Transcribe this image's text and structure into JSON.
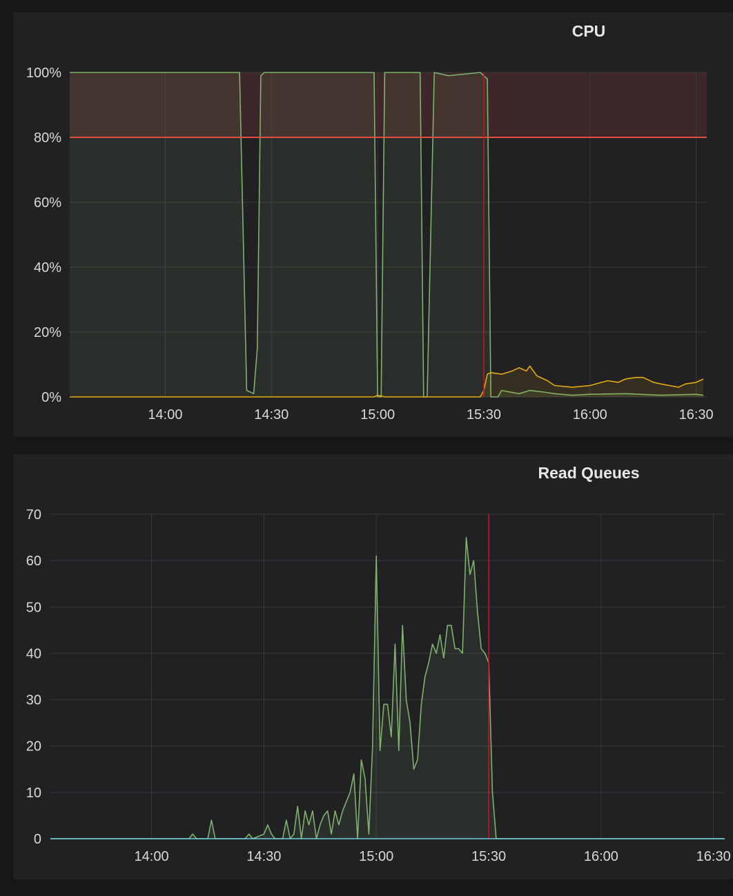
{
  "colors": {
    "background": "#161719",
    "panel": "#212124",
    "grid": "#3a3b3e",
    "green": "#7eb26d",
    "yellow": "#e5ac0e",
    "cyan": "#6ed0e0",
    "threshold_red": "#e24d42",
    "annotation_red": "#c4162a"
  },
  "chart_data": [
    {
      "type": "line",
      "title": "CPU",
      "x_ticks": [
        "14:00",
        "14:30",
        "15:00",
        "15:30",
        "16:00",
        "16:30"
      ],
      "y_ticks": [
        "0%",
        "20%",
        "40%",
        "60%",
        "80%",
        "100%"
      ],
      "xlim": [
        "13:33",
        "16:33"
      ],
      "ylim": [
        0,
        100
      ],
      "grid": true,
      "threshold": {
        "value": 80,
        "region": "above"
      },
      "annotation_time": "15:30",
      "series": [
        {
          "color": "green",
          "x": [
            "13:33",
            "14:00",
            "14:20",
            "14:21",
            "14:23",
            "14:25",
            "14:26",
            "14:27",
            "14:28",
            "14:30",
            "14:50",
            "14:59",
            "15:00",
            "15:01",
            "15:02",
            "15:10",
            "15:12",
            "15:13",
            "15:14",
            "15:16",
            "15:20",
            "15:29",
            "15:31",
            "15:32",
            "15:34",
            "15:35",
            "15:40",
            "15:43",
            "15:47",
            "15:50",
            "15:55",
            "16:00",
            "16:10",
            "16:20",
            "16:30",
            "16:32"
          ],
          "y": [
            100,
            100,
            100,
            100,
            2,
            1,
            15,
            99,
            100,
            100,
            100,
            100,
            0,
            0,
            100,
            100,
            100,
            0,
            0,
            100,
            99,
            100,
            98,
            0,
            0,
            2,
            1,
            2,
            1.5,
            1,
            0.5,
            0.8,
            1,
            0.5,
            0.8,
            0.5
          ]
        },
        {
          "color": "yellow",
          "x": [
            "13:33",
            "14:00",
            "14:30",
            "14:59",
            "15:00",
            "15:02",
            "15:10",
            "15:29",
            "15:30",
            "15:31",
            "15:32",
            "15:35",
            "15:38",
            "15:40",
            "15:42",
            "15:43",
            "15:45",
            "15:48",
            "15:50",
            "15:55",
            "16:00",
            "16:05",
            "16:08",
            "16:10",
            "16:13",
            "16:15",
            "16:18",
            "16:20",
            "16:25",
            "16:27",
            "16:30",
            "16:32"
          ],
          "y": [
            0,
            0,
            0,
            0,
            0.5,
            0,
            0,
            0,
            2,
            7,
            7.5,
            7,
            8,
            9,
            8,
            9.5,
            6.5,
            5,
            3.5,
            3,
            3.5,
            5,
            4.5,
            5.5,
            6,
            6,
            4.5,
            4,
            3,
            4,
            4.5,
            5.5
          ]
        }
      ]
    },
    {
      "type": "line",
      "title": "Read Queues",
      "x_ticks": [
        "14:00",
        "14:30",
        "15:00",
        "15:30",
        "16:00",
        "16:30"
      ],
      "y_ticks": [
        "0",
        "10",
        "20",
        "30",
        "40",
        "50",
        "60",
        "70"
      ],
      "xlim": [
        "13:33",
        "16:33"
      ],
      "ylim": [
        0,
        70
      ],
      "grid": true,
      "annotation_time": "15:30",
      "series": [
        {
          "color": "green",
          "x": [
            "13:33",
            "14:10",
            "14:11",
            "14:12",
            "14:15",
            "14:16",
            "14:17",
            "14:25",
            "14:26",
            "14:27",
            "14:30",
            "14:31",
            "14:32",
            "14:33",
            "14:35",
            "14:36",
            "14:37",
            "14:38",
            "14:39",
            "14:40",
            "14:41",
            "14:42",
            "14:43",
            "14:44",
            "14:45",
            "14:46",
            "14:47",
            "14:48",
            "14:49",
            "14:50",
            "14:51",
            "14:52",
            "14:53",
            "14:54",
            "14:55",
            "14:56",
            "14:57",
            "14:58",
            "14:59",
            "15:00",
            "15:01",
            "15:02",
            "15:03",
            "15:04",
            "15:05",
            "15:06",
            "15:07",
            "15:08",
            "15:09",
            "15:10",
            "15:11",
            "15:12",
            "15:13",
            "15:14",
            "15:15",
            "15:16",
            "15:17",
            "15:18",
            "15:19",
            "15:20",
            "15:21",
            "15:22",
            "15:23",
            "15:24",
            "15:25",
            "15:26",
            "15:27",
            "15:28",
            "15:29",
            "15:30",
            "15:31",
            "15:32",
            "16:33"
          ],
          "y": [
            0,
            0,
            1,
            0,
            0,
            4,
            0,
            0,
            1,
            0,
            1,
            3,
            1,
            0,
            0,
            4,
            0,
            1,
            7,
            0,
            6,
            3,
            6,
            0,
            3,
            5,
            6,
            1,
            6,
            3,
            6,
            8,
            10,
            14,
            0,
            17,
            13,
            1,
            20,
            61,
            19,
            29,
            29,
            22,
            42,
            19,
            46,
            30,
            25,
            15,
            17,
            29,
            35,
            38,
            42,
            40,
            44,
            39,
            46,
            46,
            41,
            41,
            40,
            65,
            57,
            60,
            49,
            41,
            40,
            38,
            10,
            0,
            0
          ]
        }
      ]
    }
  ]
}
